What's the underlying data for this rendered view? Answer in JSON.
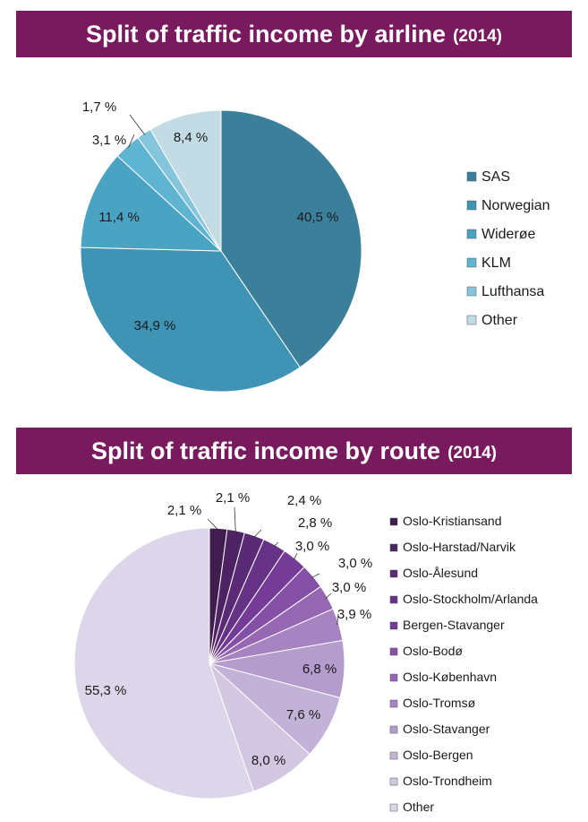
{
  "charts_text": {
    "airline": {
      "title": "Split of traffic income by airline",
      "year": "(2014)"
    },
    "route": {
      "title": "Split of traffic income by route",
      "year": "(2014)"
    }
  },
  "chart_data": [
    {
      "type": "pie",
      "title": "Split of traffic income by airline",
      "subtitle": "(2014)",
      "legend_position": "right",
      "categories": [
        "SAS",
        "Norwegian",
        "Widerøe",
        "KLM",
        "Lufthansa",
        "Other"
      ],
      "values": [
        40.5,
        34.9,
        11.4,
        3.1,
        1.7,
        8.4
      ],
      "labels": [
        "40,5 %",
        "34,9 %",
        "11,4 %",
        "3,1 %",
        "1,7 %",
        "8,4 %"
      ],
      "colors": [
        "#3b7f9a",
        "#3f93b4",
        "#4aa3c3",
        "#5fb4d2",
        "#85c5dc",
        "#c2dbe5"
      ]
    },
    {
      "type": "pie",
      "title": "Split of traffic income by route",
      "subtitle": "(2014)",
      "legend_position": "right",
      "categories": [
        "Oslo-Kristiansand",
        "Oslo-Harstad/Narvik",
        "Oslo-Ålesund",
        "Oslo-Stockholm/Arlanda",
        "Bergen-Stavanger",
        "Oslo-Bodø",
        "Oslo-København",
        "Oslo-Tromsø",
        "Oslo-Stavanger",
        "Oslo-Bergen",
        "Oslo-Trondheim",
        "Other"
      ],
      "values": [
        2.1,
        2.1,
        2.4,
        2.8,
        3.0,
        3.0,
        3.0,
        3.9,
        6.8,
        7.6,
        8.0,
        55.3
      ],
      "labels": [
        "2,1 %",
        "2,1 %",
        "2,4 %",
        "2,8 %",
        "3,0 %",
        "3,0 %",
        "3,0 %",
        "3,9 %",
        "6,8 %",
        "7,6 %",
        "8,0 %",
        "55,3 %"
      ],
      "colors": [
        "#3f1d4e",
        "#4d2363",
        "#5a2a74",
        "#663285",
        "#743c96",
        "#8450a6",
        "#9668b4",
        "#a683c1",
        "#b49ccd",
        "#c3b2d7",
        "#d2c6e1",
        "#ddd6ea"
      ]
    }
  ]
}
